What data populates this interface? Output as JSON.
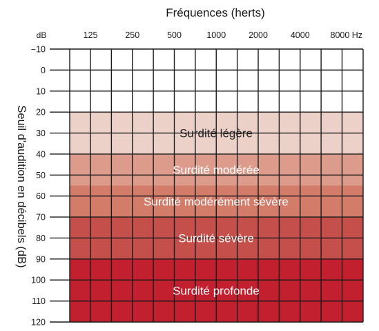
{
  "chart_data": {
    "type": "heatmap",
    "title": "Fréquences (herts)",
    "ylabel": "Seuil d'audition en décibels (dB)",
    "y_unit": "dB",
    "x_unit": "Hz",
    "x_categories": [
      "125",
      "250",
      "500",
      "1000",
      "2000",
      "4000",
      "8000"
    ],
    "x_last_label": "8000 Hz",
    "y_ticks": [
      "−10",
      "0",
      "10",
      "20",
      "30",
      "40",
      "50",
      "60",
      "70",
      "80",
      "90",
      "100",
      "110",
      "120"
    ],
    "ylim": [
      -10,
      120
    ],
    "y_inverted": true,
    "x_scale": "log2",
    "grid": true,
    "zones": [
      {
        "label": "Surdité légère",
        "from_db": 20,
        "to_db": 40,
        "color": "#ecd1c8",
        "text_color": "#222222"
      },
      {
        "label": "Surdité modérée",
        "from_db": 40,
        "to_db": 55,
        "color": "#dd9b8c",
        "text_color": "#ffffff"
      },
      {
        "label": "Surdité modérément sévère",
        "from_db": 55,
        "to_db": 70,
        "color": "#d37c69",
        "text_color": "#ffffff"
      },
      {
        "label": "Surdité sévère",
        "from_db": 70,
        "to_db": 90,
        "color": "#c5504b",
        "text_color": "#ffffff"
      },
      {
        "label": "Surdité profonde",
        "from_db": 90,
        "to_db": 120,
        "color": "#c2202e",
        "text_color": "#ffffff"
      }
    ]
  }
}
